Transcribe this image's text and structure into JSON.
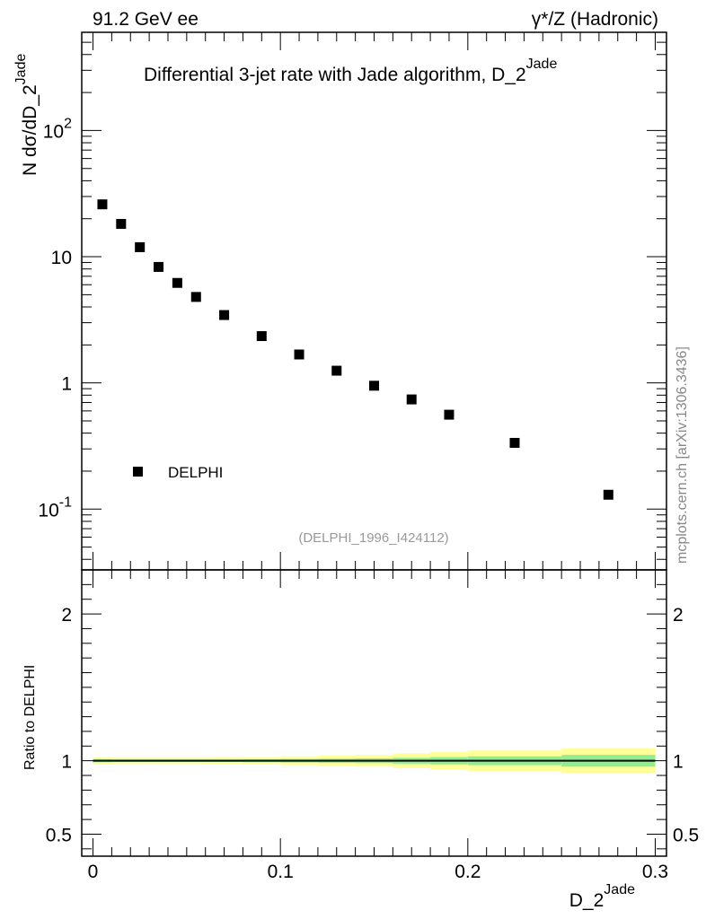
{
  "header": {
    "left": "91.2 GeV ee",
    "right": "γ*/Z (Hadronic)"
  },
  "side_label": "mcplots.cern.ch [arXiv:1306.3436]",
  "colors": {
    "data_marker": "#000000",
    "band_inner": "#90ee90",
    "band_outer": "#ffff99",
    "reference_line": "#000000"
  },
  "chart_data": [
    {
      "type": "scatter",
      "title": "Differential 3-jet rate with Jade algorithm, D_2",
      "title_superscript": "Jade",
      "ylabel": "N  dσ/dD_2",
      "ylabel_superscript": "Jade",
      "yscale": "log",
      "xlim": [
        -0.006,
        0.306
      ],
      "ylim": [
        0.033,
        600
      ],
      "y_ticks": [
        "10^-1",
        "1",
        "10",
        "10^2"
      ],
      "legend": {
        "placement": "bottom-left",
        "entries": [
          "DELPHI"
        ]
      },
      "reference": "(DELPHI_1996_I424112)",
      "series": [
        {
          "name": "DELPHI",
          "marker": "square",
          "x": [
            0.005,
            0.015,
            0.025,
            0.035,
            0.045,
            0.055,
            0.07,
            0.09,
            0.11,
            0.13,
            0.15,
            0.17,
            0.19,
            0.225,
            0.275
          ],
          "y": [
            26.0,
            18.2,
            11.9,
            8.3,
            6.2,
            4.8,
            3.45,
            2.35,
            1.68,
            1.25,
            0.95,
            0.74,
            0.56,
            0.335,
            0.13
          ]
        }
      ]
    },
    {
      "type": "area",
      "ylabel": "Ratio to DELPHI",
      "xlabel": "D_2",
      "xlabel_superscript": "Jade",
      "xlim": [
        -0.006,
        0.306
      ],
      "ylim": [
        0.35,
        2.3
      ],
      "x_ticks": [
        "0",
        "0.1",
        "0.2",
        "0.3"
      ],
      "y_ticks": [
        "0.5",
        "1",
        "2"
      ],
      "reference_value": 1,
      "bins": [
        [
          0.0,
          0.01
        ],
        [
          0.01,
          0.02
        ],
        [
          0.02,
          0.03
        ],
        [
          0.03,
          0.04
        ],
        [
          0.04,
          0.05
        ],
        [
          0.05,
          0.06
        ],
        [
          0.06,
          0.08
        ],
        [
          0.08,
          0.1
        ],
        [
          0.1,
          0.12
        ],
        [
          0.12,
          0.14
        ],
        [
          0.14,
          0.16
        ],
        [
          0.16,
          0.18
        ],
        [
          0.18,
          0.2
        ],
        [
          0.2,
          0.25
        ],
        [
          0.25,
          0.3
        ]
      ],
      "inner_band_halfwidth": [
        0.01,
        0.008,
        0.008,
        0.008,
        0.008,
        0.008,
        0.008,
        0.01,
        0.012,
        0.014,
        0.016,
        0.02,
        0.025,
        0.03,
        0.04
      ],
      "outer_band_halfwidth": [
        0.025,
        0.02,
        0.02,
        0.02,
        0.02,
        0.02,
        0.022,
        0.025,
        0.03,
        0.035,
        0.04,
        0.05,
        0.06,
        0.07,
        0.085
      ]
    }
  ]
}
